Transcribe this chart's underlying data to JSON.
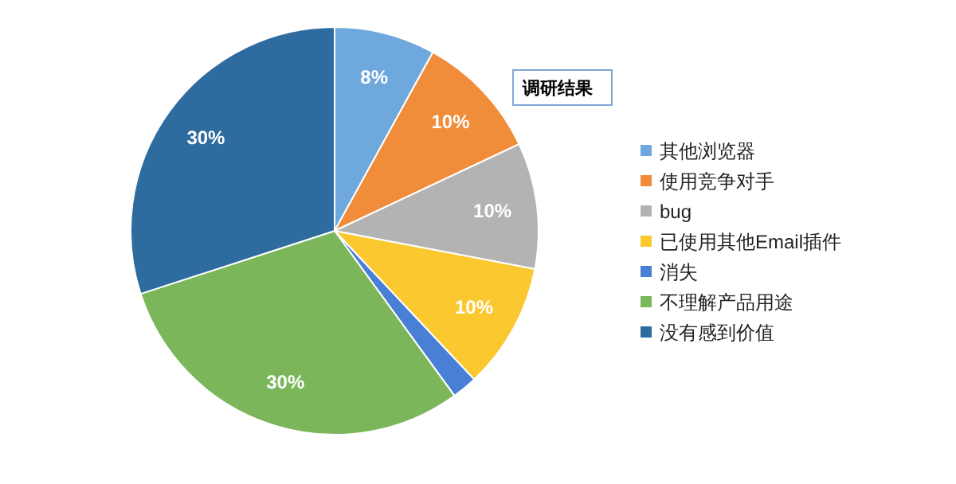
{
  "chart_data": {
    "type": "pie",
    "title": "调研结果",
    "categories": [
      "其他浏览器",
      "使用竞争对手",
      "bug",
      "已使用其他Email插件",
      "消失",
      "不理解产品用途",
      "没有感到价值"
    ],
    "values": [
      8,
      10,
      10,
      10,
      2,
      30,
      30
    ],
    "colors": [
      "#6fa8dc",
      "#f08c3a",
      "#b3b3b3",
      "#fbc830",
      "#4a7fd6",
      "#7cb65a",
      "#2e6b9e"
    ],
    "value_labels": [
      "8%",
      "10%",
      "10%",
      "10%",
      null,
      "30%",
      "30%"
    ],
    "legend": "right"
  }
}
